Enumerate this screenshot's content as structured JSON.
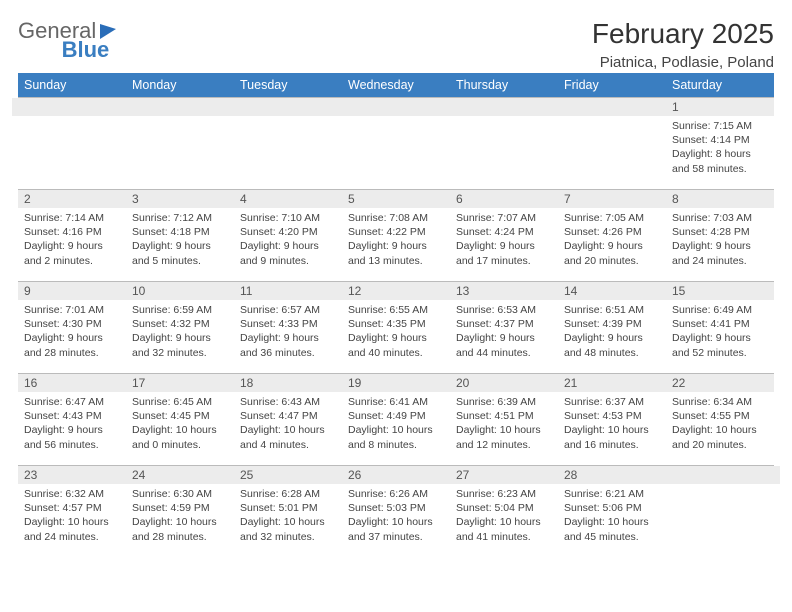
{
  "brand": {
    "part1": "General",
    "part2": "Blue"
  },
  "title": "February 2025",
  "location": "Piatnica, Podlasie, Poland",
  "colors": {
    "header_bg": "#3a7ec1",
    "header_text": "#ffffff",
    "day_bg": "#ececec",
    "border": "#bbbbbb",
    "body_text": "#444444"
  },
  "typography": {
    "title_fontsize": 28,
    "location_fontsize": 15,
    "dayheader_fontsize": 12.5,
    "cell_fontsize": 10.5
  },
  "day_names": [
    "Sunday",
    "Monday",
    "Tuesday",
    "Wednesday",
    "Thursday",
    "Friday",
    "Saturday"
  ],
  "weeks": [
    [
      null,
      null,
      null,
      null,
      null,
      null,
      {
        "n": "1",
        "sr": "7:15 AM",
        "ss": "4:14 PM",
        "dl": "8 hours and 58 minutes."
      }
    ],
    [
      {
        "n": "2",
        "sr": "7:14 AM",
        "ss": "4:16 PM",
        "dl": "9 hours and 2 minutes."
      },
      {
        "n": "3",
        "sr": "7:12 AM",
        "ss": "4:18 PM",
        "dl": "9 hours and 5 minutes."
      },
      {
        "n": "4",
        "sr": "7:10 AM",
        "ss": "4:20 PM",
        "dl": "9 hours and 9 minutes."
      },
      {
        "n": "5",
        "sr": "7:08 AM",
        "ss": "4:22 PM",
        "dl": "9 hours and 13 minutes."
      },
      {
        "n": "6",
        "sr": "7:07 AM",
        "ss": "4:24 PM",
        "dl": "9 hours and 17 minutes."
      },
      {
        "n": "7",
        "sr": "7:05 AM",
        "ss": "4:26 PM",
        "dl": "9 hours and 20 minutes."
      },
      {
        "n": "8",
        "sr": "7:03 AM",
        "ss": "4:28 PM",
        "dl": "9 hours and 24 minutes."
      }
    ],
    [
      {
        "n": "9",
        "sr": "7:01 AM",
        "ss": "4:30 PM",
        "dl": "9 hours and 28 minutes."
      },
      {
        "n": "10",
        "sr": "6:59 AM",
        "ss": "4:32 PM",
        "dl": "9 hours and 32 minutes."
      },
      {
        "n": "11",
        "sr": "6:57 AM",
        "ss": "4:33 PM",
        "dl": "9 hours and 36 minutes."
      },
      {
        "n": "12",
        "sr": "6:55 AM",
        "ss": "4:35 PM",
        "dl": "9 hours and 40 minutes."
      },
      {
        "n": "13",
        "sr": "6:53 AM",
        "ss": "4:37 PM",
        "dl": "9 hours and 44 minutes."
      },
      {
        "n": "14",
        "sr": "6:51 AM",
        "ss": "4:39 PM",
        "dl": "9 hours and 48 minutes."
      },
      {
        "n": "15",
        "sr": "6:49 AM",
        "ss": "4:41 PM",
        "dl": "9 hours and 52 minutes."
      }
    ],
    [
      {
        "n": "16",
        "sr": "6:47 AM",
        "ss": "4:43 PM",
        "dl": "9 hours and 56 minutes."
      },
      {
        "n": "17",
        "sr": "6:45 AM",
        "ss": "4:45 PM",
        "dl": "10 hours and 0 minutes."
      },
      {
        "n": "18",
        "sr": "6:43 AM",
        "ss": "4:47 PM",
        "dl": "10 hours and 4 minutes."
      },
      {
        "n": "19",
        "sr": "6:41 AM",
        "ss": "4:49 PM",
        "dl": "10 hours and 8 minutes."
      },
      {
        "n": "20",
        "sr": "6:39 AM",
        "ss": "4:51 PM",
        "dl": "10 hours and 12 minutes."
      },
      {
        "n": "21",
        "sr": "6:37 AM",
        "ss": "4:53 PM",
        "dl": "10 hours and 16 minutes."
      },
      {
        "n": "22",
        "sr": "6:34 AM",
        "ss": "4:55 PM",
        "dl": "10 hours and 20 minutes."
      }
    ],
    [
      {
        "n": "23",
        "sr": "6:32 AM",
        "ss": "4:57 PM",
        "dl": "10 hours and 24 minutes."
      },
      {
        "n": "24",
        "sr": "6:30 AM",
        "ss": "4:59 PM",
        "dl": "10 hours and 28 minutes."
      },
      {
        "n": "25",
        "sr": "6:28 AM",
        "ss": "5:01 PM",
        "dl": "10 hours and 32 minutes."
      },
      {
        "n": "26",
        "sr": "6:26 AM",
        "ss": "5:03 PM",
        "dl": "10 hours and 37 minutes."
      },
      {
        "n": "27",
        "sr": "6:23 AM",
        "ss": "5:04 PM",
        "dl": "10 hours and 41 minutes."
      },
      {
        "n": "28",
        "sr": "6:21 AM",
        "ss": "5:06 PM",
        "dl": "10 hours and 45 minutes."
      },
      null
    ]
  ],
  "labels": {
    "sunrise": "Sunrise:",
    "sunset": "Sunset:",
    "daylight": "Daylight:"
  }
}
